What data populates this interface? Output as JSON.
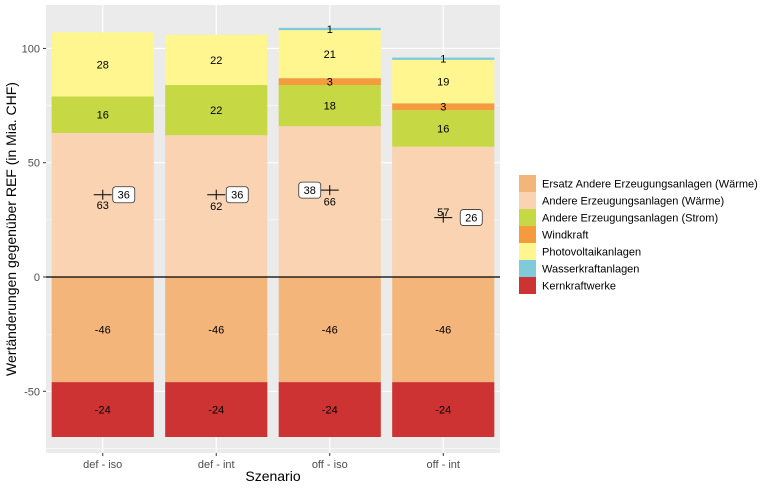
{
  "chart_data": {
    "type": "bar",
    "stacked": true,
    "title": "",
    "xlabel": "Szenario",
    "ylabel": "Wertänderungen gegenüber REF (in Mia. CHF)",
    "ylim": [
      -77,
      119
    ],
    "yticks": [
      -50,
      0,
      50,
      100
    ],
    "categories": [
      "def - iso",
      "def - int",
      "off - iso",
      "off - int"
    ],
    "series": [
      {
        "name": "Ersatz Andere Erzeugungsanlagen (Wärme)",
        "color": "#f4b57b",
        "values": [
          -46,
          -46,
          -46,
          -46
        ],
        "labels": [
          "-46",
          "-46",
          "-46",
          "-46"
        ]
      },
      {
        "name": "Andere Erzeugungsanlagen (Wärme)",
        "color": "#f9d3b2",
        "values": [
          63,
          62,
          66,
          57
        ],
        "labels": [
          "63",
          "62",
          "66",
          "57"
        ]
      },
      {
        "name": "Andere Erzeugungsanlagen (Strom)",
        "color": "#c6d844",
        "values": [
          16,
          22,
          18,
          16
        ],
        "labels": [
          "16",
          "22",
          "18",
          "16"
        ]
      },
      {
        "name": "Windkraft",
        "color": "#f39b3d",
        "values": [
          0,
          0,
          3,
          3
        ],
        "labels": [
          "",
          "",
          "3",
          "3"
        ]
      },
      {
        "name": "Photovoltaikanlagen",
        "color": "#fff68f",
        "values": [
          28,
          22,
          21,
          19
        ],
        "labels": [
          "28",
          "22",
          "21",
          "19"
        ]
      },
      {
        "name": "Wasserkraftanlagen",
        "color": "#7ecbdb",
        "values": [
          0,
          0,
          1,
          1
        ],
        "labels": [
          "",
          "",
          "1",
          "1"
        ]
      },
      {
        "name": "Kernkraftwerke",
        "color": "#cd3333",
        "values": [
          -24,
          -24,
          -24,
          -24
        ],
        "labels": [
          "-24",
          "-24",
          "-24",
          "-24"
        ]
      }
    ],
    "totals": [
      36,
      36,
      38,
      26
    ],
    "legend_position": "right",
    "grid": true
  }
}
